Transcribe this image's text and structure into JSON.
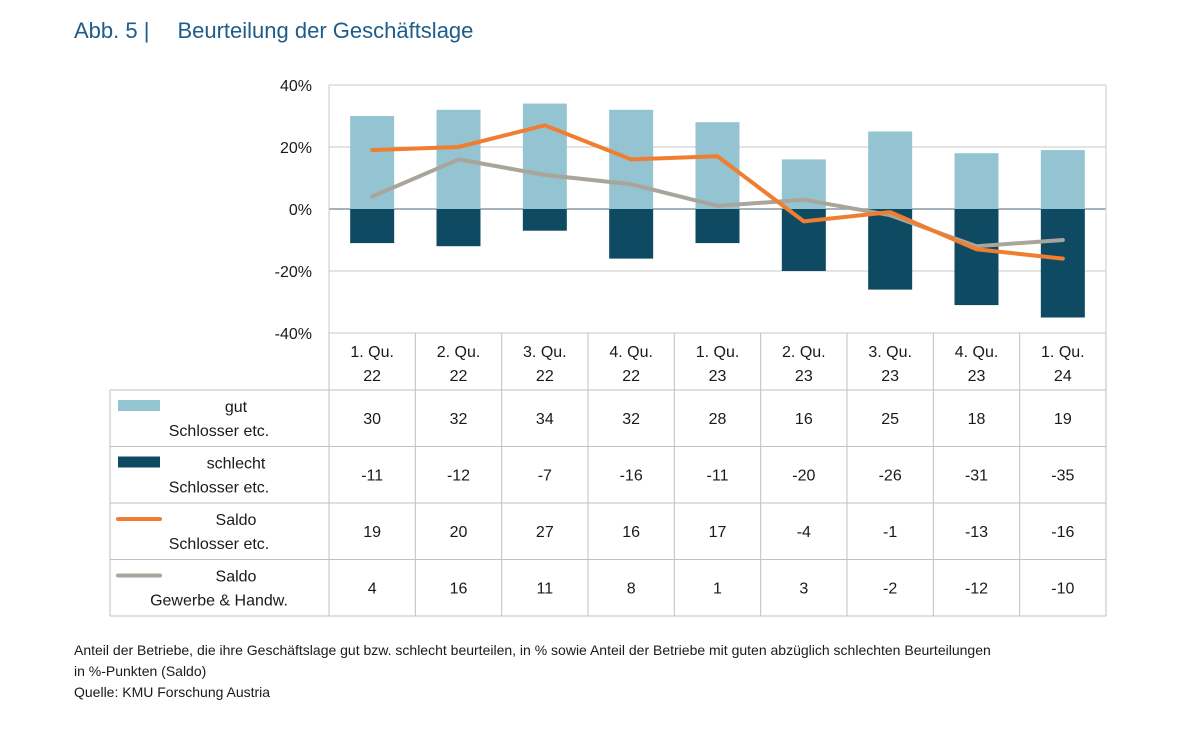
{
  "figure": {
    "label": "Abb. 5 |",
    "title": "Beurteilung der Geschäftslage"
  },
  "colors": {
    "gut": "#94c3d2",
    "schlecht": "#0f4a63",
    "saldo_schlosser": "#f07e30",
    "saldo_gewerbe": "#aaa59b",
    "grid": "#c8c8c8",
    "table_border": "#c0c0c0",
    "heading": "#1f5c89"
  },
  "chart_data": {
    "type": "bar",
    "categories": [
      [
        "1. Qu.",
        "22"
      ],
      [
        "2. Qu.",
        "22"
      ],
      [
        "3. Qu.",
        "22"
      ],
      [
        "4. Qu.",
        "22"
      ],
      [
        "1. Qu.",
        "23"
      ],
      [
        "2. Qu.",
        "23"
      ],
      [
        "3. Qu.",
        "23"
      ],
      [
        "4. Qu.",
        "23"
      ],
      [
        "1. Qu.",
        "24"
      ]
    ],
    "ylim": [
      -40,
      40
    ],
    "yticks": [
      40,
      20,
      0,
      -20,
      -40
    ],
    "ytick_labels": [
      "40%",
      "20%",
      "0%",
      "-20%",
      "-40%"
    ],
    "grid": true,
    "series": [
      {
        "key": "gut",
        "type": "bar",
        "legend_line1": "gut",
        "legend_line2": "Schlosser etc.",
        "values": [
          30,
          32,
          34,
          32,
          28,
          16,
          25,
          18,
          19
        ]
      },
      {
        "key": "schlecht",
        "type": "bar",
        "legend_line1": "schlecht",
        "legend_line2": "Schlosser etc.",
        "values": [
          -11,
          -12,
          -7,
          -16,
          -11,
          -20,
          -26,
          -31,
          -35
        ]
      },
      {
        "key": "saldo_schlosser",
        "type": "line",
        "legend_line1": "Saldo",
        "legend_line2": "Schlosser etc.",
        "values": [
          19,
          20,
          27,
          16,
          17,
          -4,
          -1,
          -13,
          -16
        ]
      },
      {
        "key": "saldo_gewerbe",
        "type": "line",
        "legend_line1": "Saldo",
        "legend_line2": "Gewerbe & Handw.",
        "values": [
          4,
          16,
          11,
          8,
          1,
          3,
          -2,
          -12,
          -10
        ]
      }
    ]
  },
  "footnote": {
    "line1": "Anteil der Betriebe, die ihre Geschäftslage gut bzw. schlecht beurteilen, in % sowie Anteil der Betriebe mit guten abzüglich schlechten Beurteilungen",
    "line2": "in %-Punkten (Saldo)",
    "line3": "Quelle: KMU Forschung Austria"
  }
}
